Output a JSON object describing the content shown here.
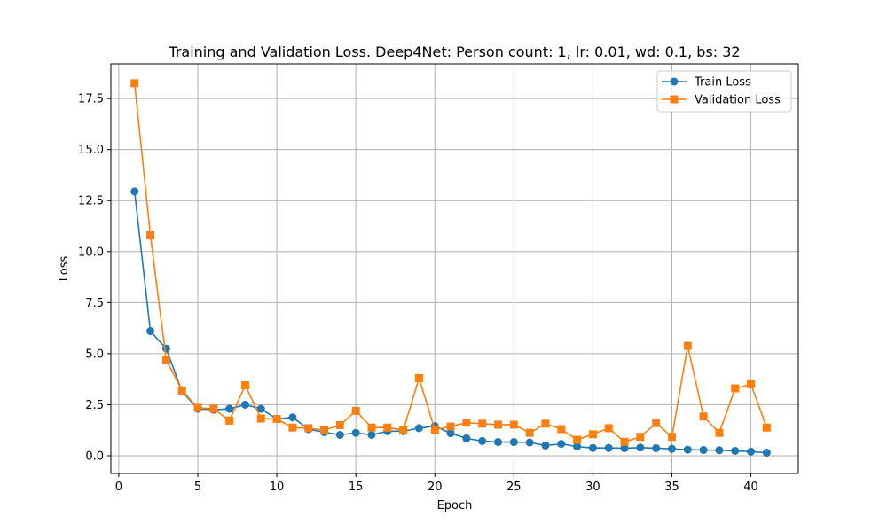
{
  "chart_data": {
    "type": "line",
    "title": "Training and Validation Loss. Deep4Net: Person count: 1, lr: 0.01, wd: 0.1, bs: 32",
    "xlabel": "Epoch",
    "ylabel": "Loss",
    "xlim": [
      -0.5,
      43
    ],
    "ylim": [
      -0.87,
      19.2
    ],
    "xticks": [
      0,
      5,
      10,
      15,
      20,
      25,
      30,
      35,
      40
    ],
    "yticks": [
      0.0,
      2.5,
      5.0,
      7.5,
      10.0,
      12.5,
      15.0,
      17.5
    ],
    "xtick_labels": [
      "0",
      "5",
      "10",
      "15",
      "20",
      "25",
      "30",
      "35",
      "40"
    ],
    "ytick_labels": [
      "0.0",
      "2.5",
      "5.0",
      "7.5",
      "10.0",
      "12.5",
      "15.0",
      "17.5"
    ],
    "grid": true,
    "legend_position": "top-right",
    "x": [
      1,
      2,
      3,
      4,
      5,
      6,
      7,
      8,
      9,
      10,
      11,
      12,
      13,
      14,
      15,
      16,
      17,
      18,
      19,
      20,
      21,
      22,
      23,
      24,
      25,
      26,
      27,
      28,
      29,
      30,
      31,
      32,
      33,
      34,
      35,
      36,
      37,
      38,
      39,
      40,
      41
    ],
    "series": [
      {
        "name": "Train Loss",
        "color": "#1f77b4",
        "marker": "circle",
        "values": [
          12.95,
          6.1,
          5.25,
          3.15,
          2.3,
          2.25,
          2.3,
          2.5,
          2.3,
          1.8,
          1.88,
          1.3,
          1.15,
          1.02,
          1.12,
          1.02,
          1.2,
          1.2,
          1.35,
          1.45,
          1.1,
          0.85,
          0.72,
          0.67,
          0.67,
          0.65,
          0.5,
          0.58,
          0.45,
          0.38,
          0.38,
          0.37,
          0.4,
          0.37,
          0.34,
          0.3,
          0.28,
          0.27,
          0.24,
          0.2,
          0.15
        ]
      },
      {
        "name": "Validation Loss",
        "color": "#ff7f0e",
        "marker": "square",
        "values": [
          18.25,
          10.8,
          4.7,
          3.2,
          2.35,
          2.3,
          1.72,
          3.45,
          1.82,
          1.8,
          1.38,
          1.35,
          1.25,
          1.5,
          2.2,
          1.38,
          1.38,
          1.25,
          3.8,
          1.27,
          1.43,
          1.62,
          1.57,
          1.52,
          1.52,
          1.12,
          1.57,
          1.3,
          0.78,
          1.05,
          1.35,
          0.68,
          0.92,
          1.6,
          0.92,
          5.38,
          1.92,
          1.12,
          3.3,
          3.5,
          1.38
        ]
      }
    ]
  }
}
